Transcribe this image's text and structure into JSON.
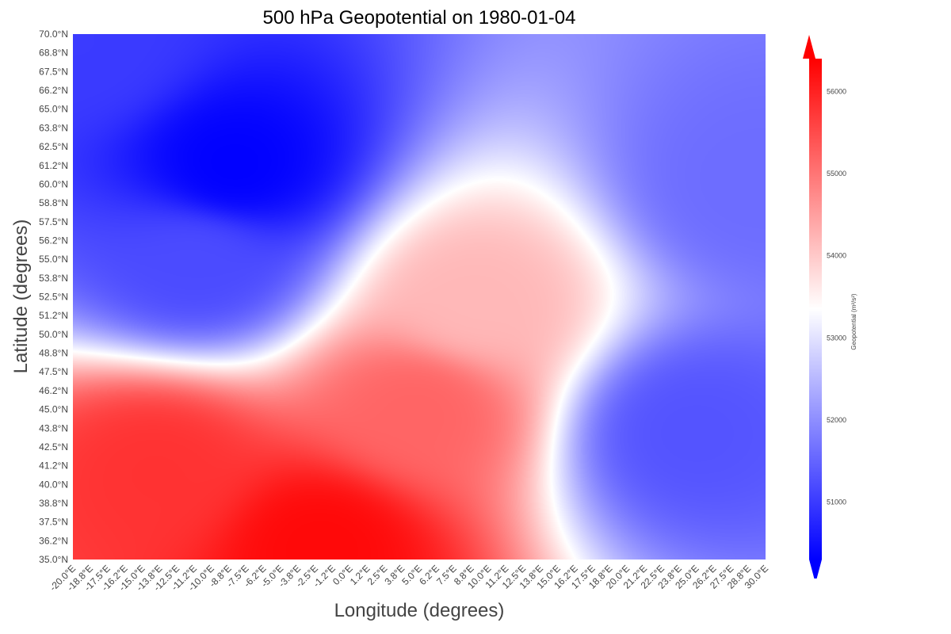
{
  "chart_data": {
    "type": "heatmap",
    "title": "500 hPa Geopotential on 1980-01-04",
    "xlabel": "Longitude (degrees)",
    "ylabel": "Latitude (degrees)",
    "xlim": [
      -20,
      30
    ],
    "ylim": [
      35,
      70
    ],
    "x_ticks": [
      "-20.0°E",
      "-18.8°E",
      "-17.5°E",
      "-16.2°E",
      "-15.0°E",
      "-13.8°E",
      "-12.5°E",
      "-11.2°E",
      "-10.0°E",
      "-8.8°E",
      "-7.5°E",
      "-6.2°E",
      "-5.0°E",
      "-3.8°E",
      "-2.5°E",
      "-1.2°E",
      "0.0°E",
      "1.2°E",
      "2.5°E",
      "3.8°E",
      "5.0°E",
      "6.2°E",
      "7.5°E",
      "8.8°E",
      "10.0°E",
      "11.2°E",
      "12.5°E",
      "13.8°E",
      "15.0°E",
      "16.2°E",
      "17.5°E",
      "18.8°E",
      "20.0°E",
      "21.2°E",
      "22.5°E",
      "23.8°E",
      "25.0°E",
      "26.2°E",
      "27.5°E",
      "28.8°E",
      "30.0°E"
    ],
    "y_ticks": [
      "35.0°N",
      "36.2°N",
      "37.5°N",
      "38.8°N",
      "40.0°N",
      "41.2°N",
      "42.5°N",
      "43.8°N",
      "45.0°N",
      "46.2°N",
      "47.5°N",
      "48.8°N",
      "50.0°N",
      "51.2°N",
      "52.5°N",
      "53.8°N",
      "55.0°N",
      "56.2°N",
      "57.5°N",
      "58.8°N",
      "60.0°N",
      "61.2°N",
      "62.5°N",
      "63.8°N",
      "65.0°N",
      "66.2°N",
      "67.5°N",
      "68.8°N",
      "70.0°N"
    ],
    "grid": false,
    "colormap": "bwr",
    "colors": {
      "low": "#0000ff",
      "mid": "#ffffff",
      "high": "#ff0000"
    },
    "colorbar": {
      "label": "Geopotential (m²/s²)",
      "range": [
        50300,
        56400
      ],
      "ticks": [
        "51000",
        "52000",
        "53000",
        "54000",
        "55000",
        "56000"
      ],
      "extend": "both"
    },
    "field": {
      "units": "m²/s²",
      "base": 52700,
      "regional_features": [
        {
          "kind": "low",
          "lon": -8.5,
          "lat": 61.0,
          "value": 50300
        },
        {
          "kind": "low",
          "lon": -11.0,
          "lat": 55.0,
          "value": 51200
        },
        {
          "kind": "high",
          "lon": -2.0,
          "lat": 36.0,
          "value": 56300
        },
        {
          "kind": "high",
          "lon": -14.0,
          "lat": 41.0,
          "value": 55800
        },
        {
          "kind": "high",
          "lon": 5.0,
          "lat": 45.0,
          "value": 55200
        },
        {
          "kind": "high",
          "lon": 9.0,
          "lat": 52.0,
          "value": 54200
        },
        {
          "kind": "low",
          "lon": 24.5,
          "lat": 43.5,
          "value": 51300
        },
        {
          "kind": "low",
          "lon": 29.0,
          "lat": 60.0,
          "value": 51600
        },
        {
          "kind": "low",
          "lon": -19.0,
          "lat": 69.0,
          "value": 51000
        }
      ]
    }
  }
}
